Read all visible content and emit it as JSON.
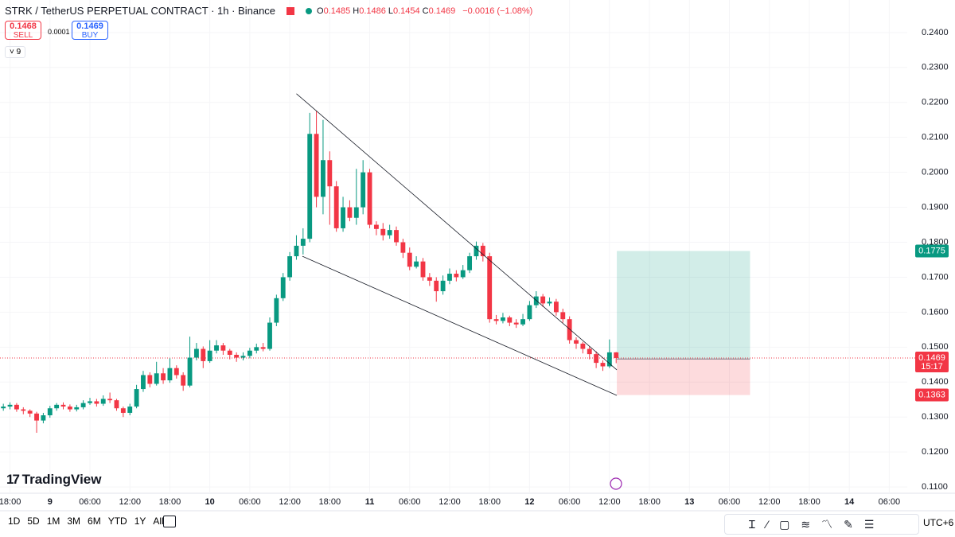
{
  "chart_data": {
    "type": "candlestick",
    "title": "STRK / TetherUS PERPETUAL CONTRACT · 1h · Binance",
    "legend_values": [
      {
        "label": "O",
        "value": "0.1485"
      },
      {
        "label": "H",
        "value": "0.1486"
      },
      {
        "label": "L",
        "value": "0.1454"
      },
      {
        "label": "C",
        "value": "0.1469"
      }
    ],
    "change": "−0.0016 (−1.08%)",
    "sell_price": 0.1468,
    "sell_label": "SELL",
    "spread": 0.0001,
    "buy_price": 0.1469,
    "buy_label": "BUY",
    "indicator_count": 9,
    "watermark": "TradingView",
    "up_color": "#089981",
    "down_color": "#f23645",
    "open": [
      0.1325,
      0.133,
      0.1335,
      0.1322,
      0.1318,
      0.131,
      0.129,
      0.1305,
      0.1325,
      0.1335,
      0.133,
      0.1322,
      0.1328,
      0.134,
      0.1345,
      0.1338,
      0.1352,
      0.1348,
      0.1325,
      0.1312,
      0.133,
      0.138,
      0.142,
      0.1395,
      0.1425,
      0.1405,
      0.144,
      0.142,
      0.139,
      0.147,
      0.1495,
      0.146,
      0.149,
      0.1505,
      0.149,
      0.1478,
      0.147,
      0.1475,
      0.149,
      0.15,
      0.1495,
      0.157,
      0.164,
      0.17,
      0.176,
      0.179,
      0.181,
      0.211,
      0.193,
      0.2035,
      0.196,
      0.184,
      0.19,
      0.187,
      0.19,
      0.2,
      0.185,
      0.1838,
      0.182,
      0.1835,
      0.18,
      0.177,
      0.173,
      0.1745,
      0.17,
      0.169,
      0.166,
      0.169,
      0.171,
      0.17,
      0.172,
      0.176,
      0.179,
      0.176,
      0.158,
      0.1575,
      0.1585,
      0.157,
      0.1565,
      0.158,
      0.162,
      0.1645,
      0.1625,
      0.163,
      0.16,
      0.158,
      0.152,
      0.151,
      0.1495,
      0.148,
      0.1455,
      0.1445,
      0.1485
    ],
    "high": [
      0.1338,
      0.1342,
      0.134,
      0.1328,
      0.1322,
      0.1315,
      0.1312,
      0.1332,
      0.134,
      0.1342,
      0.1336,
      0.1335,
      0.1348,
      0.1355,
      0.1352,
      0.1362,
      0.137,
      0.1352,
      0.133,
      0.1338,
      0.1392,
      0.1432,
      0.1428,
      0.1458,
      0.144,
      0.1468,
      0.1448,
      0.1428,
      0.153,
      0.1512,
      0.1502,
      0.152,
      0.152,
      0.1512,
      0.1495,
      0.1485,
      0.1485,
      0.1498,
      0.151,
      0.1512,
      0.1585,
      0.165,
      0.1712,
      0.1772,
      0.182,
      0.184,
      0.217,
      0.2175,
      0.215,
      0.206,
      0.1975,
      0.193,
      0.192,
      0.201,
      0.2035,
      0.201,
      0.186,
      0.1855,
      0.185,
      0.1845,
      0.181,
      0.1785,
      0.176,
      0.1755,
      0.1712,
      0.17,
      0.1705,
      0.1725,
      0.172,
      0.1735,
      0.177,
      0.1802,
      0.1798,
      0.177,
      0.1592,
      0.1598,
      0.159,
      0.158,
      0.1595,
      0.1632,
      0.166,
      0.1652,
      0.1642,
      0.1638,
      0.161,
      0.1588,
      0.1528,
      0.1515,
      0.1502,
      0.1488,
      0.1462,
      0.1522,
      0.1486
    ],
    "low": [
      0.1318,
      0.1322,
      0.1315,
      0.1308,
      0.13,
      0.1255,
      0.1282,
      0.1298,
      0.1318,
      0.1322,
      0.1315,
      0.1316,
      0.1322,
      0.1335,
      0.133,
      0.1332,
      0.134,
      0.1318,
      0.13,
      0.1305,
      0.1325,
      0.1372,
      0.1385,
      0.139,
      0.1395,
      0.1398,
      0.141,
      0.1375,
      0.1385,
      0.1462,
      0.144,
      0.1455,
      0.1482,
      0.1478,
      0.1465,
      0.1458,
      0.1462,
      0.1468,
      0.1482,
      0.1488,
      0.149,
      0.156,
      0.1632,
      0.169,
      0.175,
      0.1765,
      0.18,
      0.19,
      0.188,
      0.185,
      0.183,
      0.183,
      0.186,
      0.185,
      0.188,
      0.184,
      0.182,
      0.1805,
      0.181,
      0.179,
      0.1755,
      0.172,
      0.1725,
      0.169,
      0.1675,
      0.163,
      0.165,
      0.168,
      0.1688,
      0.1695,
      0.1712,
      0.175,
      0.1745,
      0.157,
      0.1565,
      0.1568,
      0.156,
      0.1555,
      0.156,
      0.1575,
      0.1612,
      0.1615,
      0.1618,
      0.159,
      0.157,
      0.151,
      0.1495,
      0.1482,
      0.1465,
      0.144,
      0.1432,
      0.144,
      0.1454
    ],
    "close": [
      0.133,
      0.1335,
      0.1322,
      0.1318,
      0.131,
      0.129,
      0.1305,
      0.1325,
      0.1335,
      0.133,
      0.1322,
      0.1328,
      0.134,
      0.1345,
      0.1338,
      0.1352,
      0.1348,
      0.1325,
      0.1312,
      0.133,
      0.138,
      0.142,
      0.1395,
      0.1425,
      0.1405,
      0.144,
      0.142,
      0.139,
      0.147,
      0.1495,
      0.146,
      0.149,
      0.1505,
      0.149,
      0.1478,
      0.147,
      0.1475,
      0.149,
      0.15,
      0.1495,
      0.157,
      0.164,
      0.17,
      0.176,
      0.179,
      0.181,
      0.211,
      0.193,
      0.2035,
      0.196,
      0.184,
      0.19,
      0.187,
      0.19,
      0.2,
      0.185,
      0.1838,
      0.182,
      0.1835,
      0.18,
      0.177,
      0.173,
      0.1745,
      0.17,
      0.169,
      0.166,
      0.169,
      0.171,
      0.17,
      0.172,
      0.176,
      0.179,
      0.176,
      0.158,
      0.1575,
      0.1585,
      0.157,
      0.1565,
      0.158,
      0.162,
      0.1645,
      0.1625,
      0.163,
      0.16,
      0.158,
      0.152,
      0.151,
      0.1495,
      0.148,
      0.1455,
      0.1445,
      0.1485,
      0.1469
    ],
    "ylim": [
      0.1082,
      0.2493
    ],
    "yticks": [
      {
        "value": 0.11,
        "label": "0.1100"
      },
      {
        "value": 0.12,
        "label": "0.1200"
      },
      {
        "value": 0.13,
        "label": "0.1300"
      },
      {
        "value": 0.14,
        "label": "0.1400"
      },
      {
        "value": 0.15,
        "label": "0.1500"
      },
      {
        "value": 0.16,
        "label": "0.1600"
      },
      {
        "value": 0.17,
        "label": "0.1700"
      },
      {
        "value": 0.18,
        "label": "0.1800"
      },
      {
        "value": 0.19,
        "label": "0.1900"
      },
      {
        "value": 0.2,
        "label": "0.2000"
      },
      {
        "value": 0.21,
        "label": "0.2100"
      },
      {
        "value": 0.22,
        "label": "0.2200"
      },
      {
        "value": 0.23,
        "label": "0.2300"
      },
      {
        "value": 0.24,
        "label": "0.2400"
      }
    ],
    "xlim": [
      -0.5,
      135.7
    ],
    "xticks": [
      {
        "value": 1,
        "label": "18:00"
      },
      {
        "value": 7,
        "label": "9"
      },
      {
        "value": 13,
        "label": "06:00"
      },
      {
        "value": 19,
        "label": "12:00"
      },
      {
        "value": 25,
        "label": "18:00"
      },
      {
        "value": 31,
        "label": "10"
      },
      {
        "value": 37,
        "label": "06:00"
      },
      {
        "value": 43,
        "label": "12:00"
      },
      {
        "value": 49,
        "label": "18:00"
      },
      {
        "value": 55,
        "label": "11"
      },
      {
        "value": 61,
        "label": "06:00"
      },
      {
        "value": 67,
        "label": "12:00"
      },
      {
        "value": 73,
        "label": "18:00"
      },
      {
        "value": 79,
        "label": "12"
      },
      {
        "value": 85,
        "label": "06:00"
      },
      {
        "value": 91,
        "label": "12:00"
      },
      {
        "value": 97,
        "label": "18:00"
      },
      {
        "value": 103,
        "label": "13"
      },
      {
        "value": 109,
        "label": "06:00"
      },
      {
        "value": 115,
        "label": "12:00"
      },
      {
        "value": 121,
        "label": "18:00"
      },
      {
        "value": 127,
        "label": "14"
      },
      {
        "value": 133,
        "label": "06:00"
      }
    ],
    "trendlines": [
      {
        "x": [
          44.0,
          92.1
        ],
        "y": [
          0.2225,
          0.1435
        ]
      },
      {
        "x": [
          44.9,
          92.1
        ],
        "y": [
          0.176,
          0.1362
        ]
      }
    ],
    "position": {
      "x": [
        92.1,
        112.1
      ],
      "target": 0.1775,
      "entry": 0.1466,
      "stop": 0.1363
    },
    "last_price": 0.1469,
    "countdown": "15:17",
    "ranges": [
      "1D",
      "5D",
      "1M",
      "3M",
      "6M",
      "YTD",
      "1Y",
      "All"
    ],
    "timezone": "UTC+6"
  }
}
